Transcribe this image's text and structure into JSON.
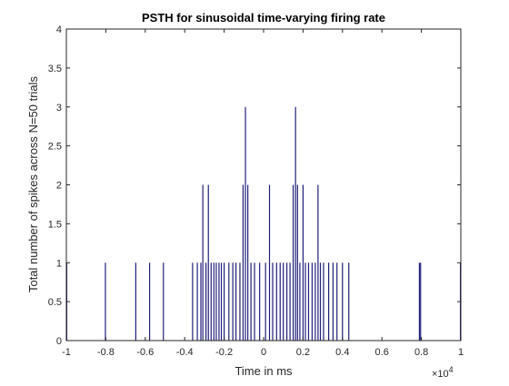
{
  "chart_data": {
    "type": "bar",
    "title": "PSTH for sinusoidal time-varying firing rate",
    "xlabel": "Time in ms",
    "ylabel": "Total number of spikes across N=50 trials",
    "x_exponent_label": "×10",
    "x_exponent_power": "4",
    "xlim": [
      -1,
      1
    ],
    "ylim": [
      0,
      4
    ],
    "xticks": [
      -1,
      -0.8,
      -0.6,
      -0.4,
      -0.2,
      0,
      0.2,
      0.4,
      0.6,
      0.8,
      1
    ],
    "xtick_labels": [
      "-1",
      "-0.8",
      "-0.6",
      "-0.4",
      "-0.2",
      "0",
      "0.2",
      "0.4",
      "0.6",
      "0.8",
      "1"
    ],
    "yticks": [
      0,
      0.5,
      1,
      1.5,
      2,
      2.5,
      3,
      3.5,
      4
    ],
    "ytick_labels": [
      "0",
      "0.5",
      "1",
      "1.5",
      "2",
      "2.5",
      "3",
      "3.5",
      "4"
    ],
    "grid": false,
    "bar_color": "#1f1f7a",
    "axis_color": "#262626",
    "bins": [
      {
        "x": -0.998,
        "count": 1
      },
      {
        "x": -0.802,
        "count": 1
      },
      {
        "x": -0.648,
        "count": 1
      },
      {
        "x": -0.578,
        "count": 1
      },
      {
        "x": -0.508,
        "count": 1
      },
      {
        "x": -0.36,
        "count": 1
      },
      {
        "x": -0.336,
        "count": 1
      },
      {
        "x": -0.318,
        "count": 1
      },
      {
        "x": -0.308,
        "count": 2
      },
      {
        "x": -0.292,
        "count": 1
      },
      {
        "x": -0.28,
        "count": 2
      },
      {
        "x": -0.266,
        "count": 1
      },
      {
        "x": -0.252,
        "count": 1
      },
      {
        "x": -0.24,
        "count": 1
      },
      {
        "x": -0.226,
        "count": 1
      },
      {
        "x": -0.214,
        "count": 1
      },
      {
        "x": -0.2,
        "count": 1
      },
      {
        "x": -0.176,
        "count": 1
      },
      {
        "x": -0.156,
        "count": 1
      },
      {
        "x": -0.14,
        "count": 1
      },
      {
        "x": -0.12,
        "count": 1
      },
      {
        "x": -0.104,
        "count": 2
      },
      {
        "x": -0.092,
        "count": 3
      },
      {
        "x": -0.08,
        "count": 2
      },
      {
        "x": -0.064,
        "count": 1
      },
      {
        "x": -0.046,
        "count": 1
      },
      {
        "x": -0.02,
        "count": 1
      },
      {
        "x": 0.01,
        "count": 1
      },
      {
        "x": 0.03,
        "count": 2
      },
      {
        "x": 0.046,
        "count": 1
      },
      {
        "x": 0.066,
        "count": 1
      },
      {
        "x": 0.084,
        "count": 1
      },
      {
        "x": 0.1,
        "count": 1
      },
      {
        "x": 0.118,
        "count": 1
      },
      {
        "x": 0.134,
        "count": 1
      },
      {
        "x": 0.15,
        "count": 2
      },
      {
        "x": 0.162,
        "count": 3
      },
      {
        "x": 0.172,
        "count": 2
      },
      {
        "x": 0.184,
        "count": 1
      },
      {
        "x": 0.2,
        "count": 2
      },
      {
        "x": 0.212,
        "count": 1
      },
      {
        "x": 0.228,
        "count": 1
      },
      {
        "x": 0.246,
        "count": 1
      },
      {
        "x": 0.262,
        "count": 1
      },
      {
        "x": 0.276,
        "count": 2
      },
      {
        "x": 0.288,
        "count": 1
      },
      {
        "x": 0.304,
        "count": 1
      },
      {
        "x": 0.33,
        "count": 1
      },
      {
        "x": 0.352,
        "count": 1
      },
      {
        "x": 0.372,
        "count": 1
      },
      {
        "x": 0.4,
        "count": 1
      },
      {
        "x": 0.432,
        "count": 1
      },
      {
        "x": 0.79,
        "count": 1
      },
      {
        "x": 0.796,
        "count": 1
      },
      {
        "x": 0.998,
        "count": 1
      }
    ]
  }
}
